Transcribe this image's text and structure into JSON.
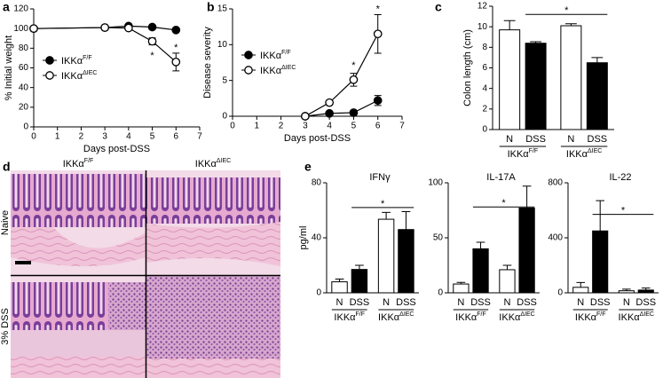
{
  "panel_labels": [
    "a",
    "b",
    "c",
    "d",
    "e"
  ],
  "histology": {
    "columns": [
      {
        "name": "IKKα",
        "name_sup": "F/F"
      },
      {
        "name": "IKKα",
        "name_sup": "ΔIEC"
      }
    ],
    "rows": [
      "Naive",
      "3% DSS"
    ]
  },
  "chart_data": [
    {
      "type": "line",
      "xlabel": "Days post-DSS",
      "ylabel": "% Initial weight",
      "x": [
        0,
        3,
        4,
        5,
        6
      ],
      "xlim": [
        0,
        7
      ],
      "xticks": [
        0,
        1,
        2,
        3,
        4,
        5,
        6,
        7
      ],
      "ylim": [
        0,
        120
      ],
      "yticks": [
        0,
        20,
        40,
        60,
        80,
        100,
        120
      ],
      "legend": "center left",
      "series": [
        {
          "name": "IKKα",
          "name_sup": "F/F",
          "color": "#000000",
          "marker": "filled",
          "values": [
            100,
            101,
            102.5,
            101.5,
            98.5
          ],
          "errors": [
            null,
            null,
            null,
            1,
            1
          ]
        },
        {
          "name": "IKKα",
          "name_sup": "ΔIEC",
          "color": "#000000",
          "marker": "open",
          "values": [
            100,
            101,
            100.5,
            87,
            66
          ],
          "errors": [
            null,
            null,
            null,
            3.5,
            9
          ]
        }
      ],
      "annotations": [
        {
          "text": "*",
          "x": 5,
          "y": 75
        },
        {
          "text": "*",
          "x": 6,
          "y": 83
        }
      ]
    },
    {
      "type": "line",
      "xlabel": "Days post-DSS",
      "ylabel": "Disease severity",
      "x": [
        3,
        4,
        5,
        6
      ],
      "xlim": [
        0,
        7
      ],
      "xticks": [
        0,
        1,
        2,
        3,
        4,
        5,
        6,
        7
      ],
      "ylim": [
        0,
        15
      ],
      "yticks": [
        0,
        5,
        10,
        15
      ],
      "legend": "center left",
      "series": [
        {
          "name": "IKKα",
          "name_sup": "F/F",
          "color": "#000000",
          "marker": "filled",
          "values": [
            0,
            0.4,
            0.5,
            2.2
          ],
          "errors": [
            null,
            null,
            0.2,
            0.7
          ]
        },
        {
          "name": "IKKα",
          "name_sup": "ΔIEC",
          "color": "#000000",
          "marker": "open",
          "values": [
            0,
            1.9,
            5.1,
            11.5
          ],
          "errors": [
            null,
            0.2,
            0.9,
            2.7
          ]
        }
      ],
      "annotations": [
        {
          "text": "*",
          "x": 5,
          "y": 7.4
        },
        {
          "text": "*",
          "x": 6,
          "y": 15.3
        }
      ]
    },
    {
      "type": "bar",
      "ylabel": "Colon length (cm)",
      "categories": [
        "N",
        "DSS",
        "N",
        "DSS"
      ],
      "values": [
        9.7,
        8.4,
        10.1,
        6.5
      ],
      "errors": [
        0.9,
        0.15,
        0.2,
        0.5
      ],
      "colors": [
        "#ffffff",
        "#000000",
        "#ffffff",
        "#000000"
      ],
      "ylim": [
        0,
        12
      ],
      "yticks": [
        0,
        2,
        4,
        6,
        8,
        10,
        12
      ],
      "groups": [
        {
          "name": "IKKα",
          "name_sup": "F/F",
          "span": [
            0,
            1
          ]
        },
        {
          "name": "IKKα",
          "name_sup": "ΔIEC",
          "span": [
            2,
            3
          ]
        }
      ],
      "significance": {
        "text": "*",
        "from": 1,
        "to": 3,
        "y": 11.2
      }
    },
    {
      "type": "bar",
      "title": "IFNγ",
      "ylabel": "pg/ml",
      "categories": [
        "N",
        "DSS",
        "N",
        "DSS"
      ],
      "values": [
        8,
        17,
        53.5,
        46
      ],
      "errors": [
        2,
        3,
        5,
        13
      ],
      "colors": [
        "#ffffff",
        "#000000",
        "#ffffff",
        "#000000"
      ],
      "ylim": [
        0,
        80
      ],
      "yticks": [
        0,
        40,
        80
      ],
      "groups": [
        {
          "name": "IKKα",
          "name_sup": "F/F",
          "span": [
            0,
            1
          ]
        },
        {
          "name": "IKKα",
          "name_sup": "ΔIEC",
          "span": [
            2,
            3
          ]
        }
      ],
      "significance": {
        "text": "*",
        "from": 1,
        "to": 3,
        "y": 62
      }
    },
    {
      "type": "bar",
      "title": "IL-17A",
      "categories": [
        "N",
        "DSS",
        "N",
        "DSS"
      ],
      "values": [
        8,
        40,
        21,
        77
      ],
      "errors": [
        1.5,
        6,
        4,
        20
      ],
      "colors": [
        "#ffffff",
        "#000000",
        "#ffffff",
        "#000000"
      ],
      "ylim": [
        0,
        100
      ],
      "yticks": [
        0,
        50,
        100
      ],
      "groups": [
        {
          "name": "IKKα",
          "name_sup": "F/F",
          "span": [
            0,
            1
          ]
        },
        {
          "name": "IKKα",
          "name_sup": "ΔIEC",
          "span": [
            2,
            3
          ]
        }
      ],
      "significance": {
        "text": "*",
        "from": 1,
        "to": 3,
        "y": 78
      }
    },
    {
      "type": "bar",
      "title": "IL-22",
      "categories": [
        "N",
        "DSS",
        "N",
        "DSS"
      ],
      "values": [
        40,
        450,
        15,
        20
      ],
      "errors": [
        35,
        220,
        12,
        15
      ],
      "colors": [
        "#ffffff",
        "#000000",
        "#ffffff",
        "#000000"
      ],
      "ylim": [
        0,
        800
      ],
      "yticks": [
        0,
        400,
        800
      ],
      "groups": [
        {
          "name": "IKKα",
          "name_sup": "F/F",
          "span": [
            0,
            1
          ]
        },
        {
          "name": "IKKα",
          "name_sup": "ΔIEC",
          "span": [
            2,
            3
          ]
        }
      ],
      "significance": {
        "text": "*",
        "from": 1,
        "to": 3,
        "y": 570
      }
    }
  ]
}
